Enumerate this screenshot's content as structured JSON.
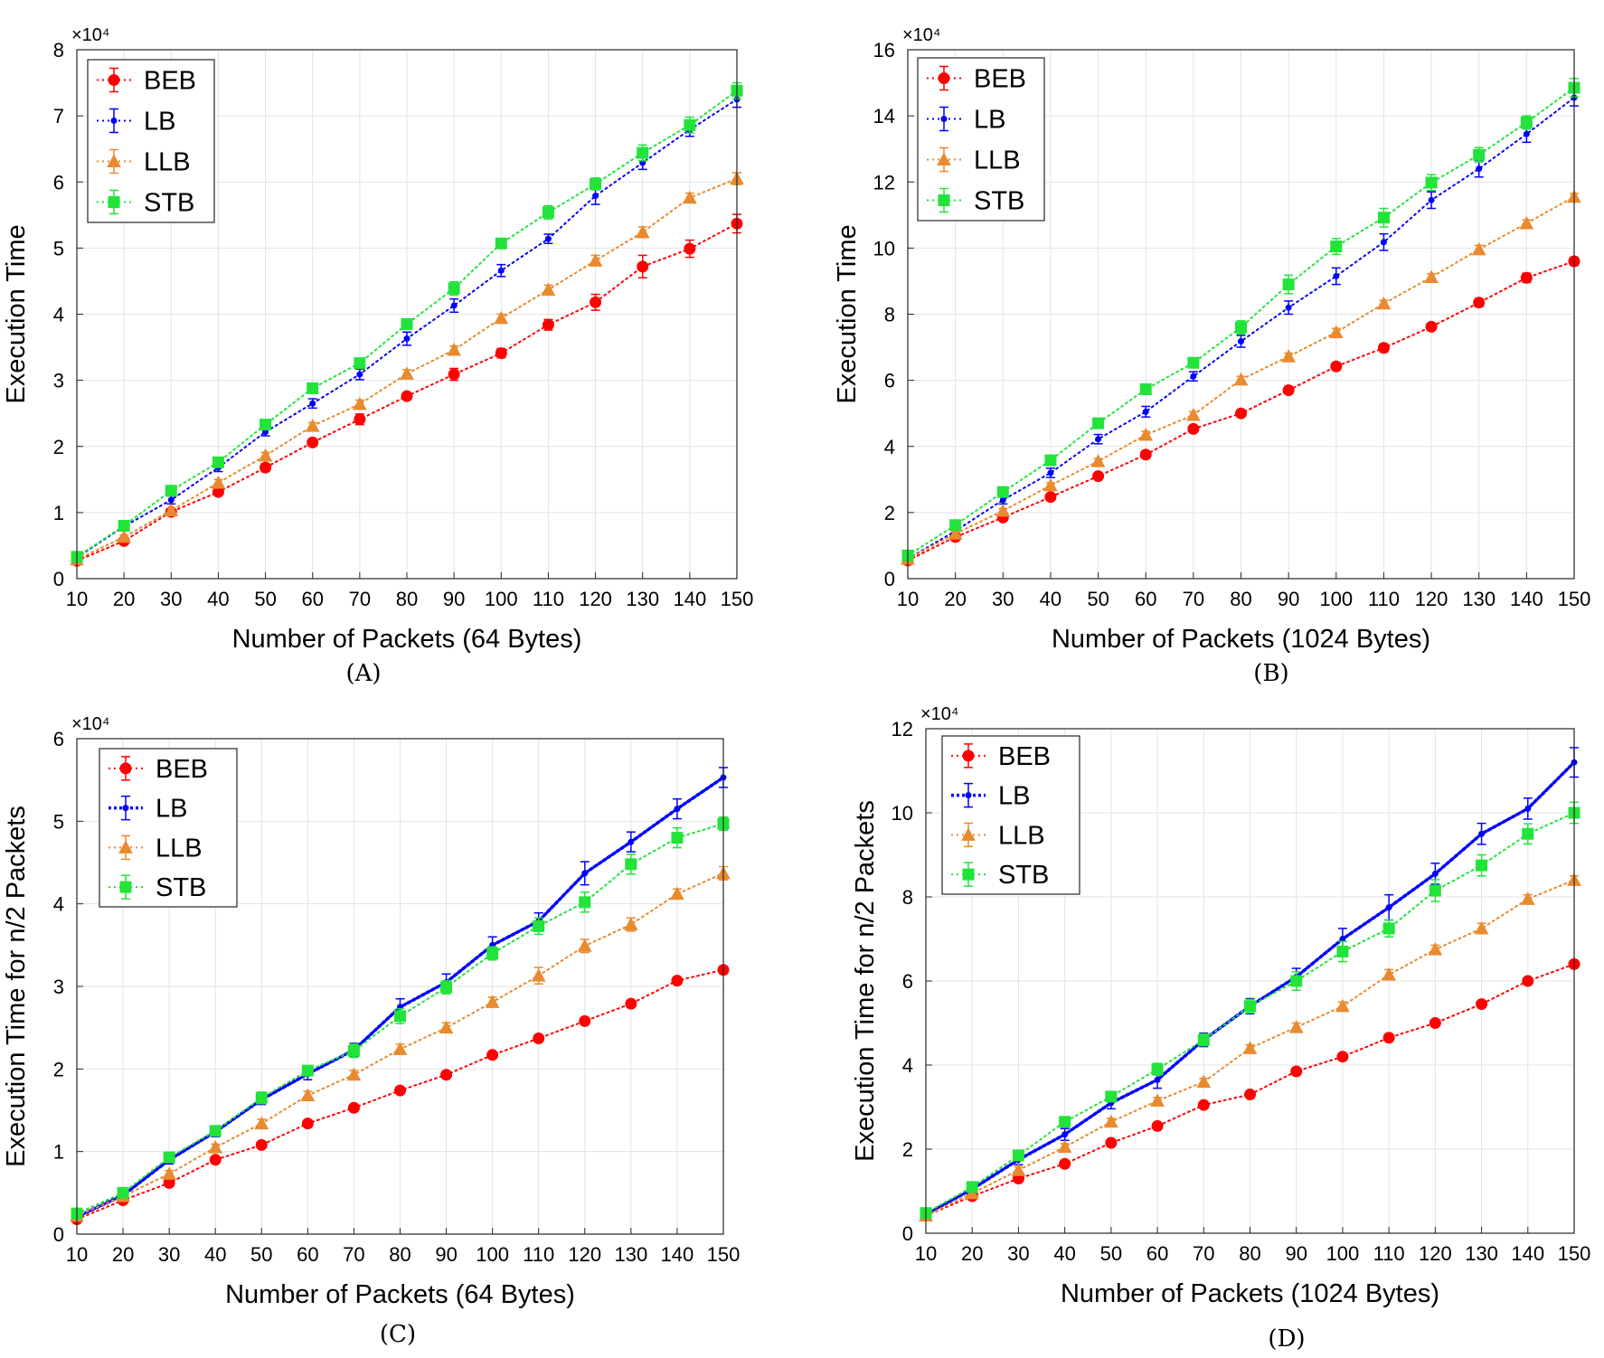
{
  "chart_data": [
    {
      "id": "A",
      "type": "line",
      "caption": "(A)",
      "xlabel": "Number of Packets (64 Bytes)",
      "ylabel": "Execution Time",
      "exponent_label": "×10⁴",
      "x": [
        10,
        20,
        30,
        40,
        50,
        60,
        70,
        80,
        90,
        100,
        110,
        120,
        130,
        140,
        150
      ],
      "xlim": [
        10,
        150
      ],
      "ylim": [
        0,
        8
      ],
      "yticks": [
        0,
        1,
        2,
        3,
        4,
        5,
        6,
        7,
        8
      ],
      "grid": true,
      "legend_position": "top-left",
      "series": [
        {
          "name": "BEB",
          "color": "#ff0000",
          "marker": "circle",
          "bold": false,
          "values": [
            0.27,
            0.57,
            1.01,
            1.31,
            1.68,
            2.06,
            2.41,
            2.76,
            3.09,
            3.41,
            3.84,
            4.18,
            4.72,
            4.99,
            5.37
          ],
          "errors": [
            0.03,
            0.04,
            0.04,
            0.04,
            0.06,
            0.05,
            0.08,
            0.05,
            0.09,
            0.07,
            0.08,
            0.12,
            0.17,
            0.13,
            0.14
          ]
        },
        {
          "name": "LB",
          "color": "#0000ff",
          "marker": "dot",
          "bold": false,
          "values": [
            0.32,
            0.79,
            1.19,
            1.68,
            2.22,
            2.65,
            3.09,
            3.63,
            4.13,
            4.66,
            5.14,
            5.79,
            6.29,
            6.79,
            7.25
          ],
          "errors": [
            0.03,
            0.04,
            0.06,
            0.06,
            0.06,
            0.07,
            0.08,
            0.1,
            0.1,
            0.09,
            0.07,
            0.13,
            0.1,
            0.1,
            0.12
          ]
        },
        {
          "name": "LLB",
          "color": "#e98a2e",
          "marker": "triangle",
          "bold": false,
          "values": [
            0.29,
            0.63,
            1.03,
            1.45,
            1.86,
            2.31,
            2.64,
            3.1,
            3.46,
            3.94,
            4.37,
            4.81,
            5.24,
            5.76,
            6.05
          ],
          "errors": [
            0.02,
            0.03,
            0.04,
            0.05,
            0.05,
            0.05,
            0.06,
            0.06,
            0.06,
            0.06,
            0.07,
            0.08,
            0.08,
            0.07,
            0.09
          ]
        },
        {
          "name": "STB",
          "color": "#22e33a",
          "marker": "square",
          "bold": false,
          "values": [
            0.33,
            0.8,
            1.33,
            1.76,
            2.33,
            2.88,
            3.26,
            3.85,
            4.39,
            5.07,
            5.54,
            5.97,
            6.44,
            6.86,
            7.38
          ],
          "errors": [
            0.03,
            0.04,
            0.05,
            0.05,
            0.06,
            0.05,
            0.05,
            0.06,
            0.1,
            0.06,
            0.1,
            0.09,
            0.12,
            0.12,
            0.12
          ]
        }
      ]
    },
    {
      "id": "B",
      "type": "line",
      "caption": "(B)",
      "xlabel": "Number of Packets (1024 Bytes)",
      "ylabel": "Execution Time",
      "exponent_label": "×10⁴",
      "x": [
        10,
        20,
        30,
        40,
        50,
        60,
        70,
        80,
        90,
        100,
        110,
        120,
        130,
        140,
        150
      ],
      "xlim": [
        10,
        150
      ],
      "ylim": [
        0,
        16
      ],
      "yticks": [
        0,
        2,
        4,
        6,
        8,
        10,
        12,
        14,
        16
      ],
      "grid": true,
      "legend_position": "top-left",
      "series": [
        {
          "name": "BEB",
          "color": "#ff0000",
          "marker": "circle",
          "bold": false,
          "values": [
            0.55,
            1.26,
            1.85,
            2.47,
            3.1,
            3.75,
            4.53,
            5.0,
            5.7,
            6.42,
            6.98,
            7.62,
            8.35,
            9.1,
            9.6
          ],
          "errors": [
            0.05,
            0.06,
            0.06,
            0.07,
            0.07,
            0.08,
            0.08,
            0.09,
            0.1,
            0.1,
            0.12,
            0.1,
            0.12,
            0.14,
            0.12
          ]
        },
        {
          "name": "LB",
          "color": "#0000ff",
          "marker": "dot",
          "bold": false,
          "values": [
            0.6,
            1.44,
            2.38,
            3.2,
            4.22,
            5.05,
            6.12,
            7.18,
            8.2,
            9.15,
            10.18,
            11.45,
            12.4,
            13.45,
            14.55
          ],
          "errors": [
            0.06,
            0.08,
            0.12,
            0.14,
            0.14,
            0.16,
            0.14,
            0.18,
            0.2,
            0.25,
            0.25,
            0.25,
            0.25,
            0.25,
            0.25
          ]
        },
        {
          "name": "LLB",
          "color": "#e98a2e",
          "marker": "triangle",
          "bold": false,
          "values": [
            0.6,
            1.36,
            2.05,
            2.82,
            3.55,
            4.35,
            4.95,
            6.02,
            6.72,
            7.45,
            8.32,
            9.12,
            9.96,
            10.75,
            11.55
          ],
          "errors": [
            0.05,
            0.06,
            0.07,
            0.08,
            0.08,
            0.1,
            0.1,
            0.1,
            0.1,
            0.12,
            0.1,
            0.1,
            0.12,
            0.1,
            0.1
          ]
        },
        {
          "name": "STB",
          "color": "#22e33a",
          "marker": "square",
          "bold": false,
          "values": [
            0.7,
            1.62,
            2.62,
            3.58,
            4.7,
            5.73,
            6.53,
            7.6,
            8.9,
            10.05,
            10.92,
            11.98,
            12.82,
            13.8,
            14.85
          ],
          "errors": [
            0.08,
            0.1,
            0.12,
            0.12,
            0.12,
            0.14,
            0.14,
            0.2,
            0.28,
            0.24,
            0.28,
            0.24,
            0.22,
            0.2,
            0.28
          ]
        }
      ]
    },
    {
      "id": "C",
      "type": "line",
      "caption": "(C)",
      "xlabel": "Number of Packets (64 Bytes)",
      "ylabel": "Execution Time for n/2 Packets",
      "exponent_label": "×10⁴",
      "x": [
        10,
        20,
        30,
        40,
        50,
        60,
        70,
        80,
        90,
        100,
        110,
        120,
        130,
        140,
        150
      ],
      "xlim": [
        10,
        150
      ],
      "ylim": [
        0,
        6
      ],
      "yticks": [
        0,
        1,
        2,
        3,
        4,
        5,
        6
      ],
      "grid": true,
      "legend_position": "top-left",
      "series": [
        {
          "name": "BEB",
          "color": "#ff0000",
          "marker": "circle",
          "bold": false,
          "values": [
            0.18,
            0.41,
            0.62,
            0.9,
            1.08,
            1.34,
            1.53,
            1.74,
            1.93,
            2.17,
            2.37,
            2.58,
            2.79,
            3.07,
            3.2
          ],
          "errors": [
            0.02,
            0.02,
            0.03,
            0.03,
            0.03,
            0.03,
            0.03,
            0.03,
            0.03,
            0.03,
            0.04,
            0.04,
            0.04,
            0.04,
            0.04
          ]
        },
        {
          "name": "LB",
          "color": "#0000ff",
          "marker": "dot",
          "bold": true,
          "values": [
            0.21,
            0.47,
            0.9,
            1.24,
            1.63,
            1.94,
            2.23,
            2.75,
            3.05,
            3.5,
            3.79,
            4.37,
            4.75,
            5.15,
            5.53
          ],
          "errors": [
            0.03,
            0.04,
            0.05,
            0.06,
            0.06,
            0.07,
            0.08,
            0.1,
            0.1,
            0.1,
            0.1,
            0.14,
            0.12,
            0.12,
            0.12
          ]
        },
        {
          "name": "LLB",
          "color": "#e98a2e",
          "marker": "triangle",
          "bold": false,
          "values": [
            0.22,
            0.46,
            0.73,
            1.05,
            1.34,
            1.68,
            1.93,
            2.24,
            2.5,
            2.81,
            3.13,
            3.49,
            3.75,
            4.12,
            4.37
          ],
          "errors": [
            0.03,
            0.03,
            0.04,
            0.04,
            0.05,
            0.05,
            0.05,
            0.06,
            0.06,
            0.06,
            0.1,
            0.08,
            0.08,
            0.06,
            0.08
          ]
        },
        {
          "name": "STB",
          "color": "#22e33a",
          "marker": "square",
          "bold": false,
          "values": [
            0.25,
            0.5,
            0.93,
            1.25,
            1.65,
            1.98,
            2.22,
            2.64,
            2.99,
            3.4,
            3.73,
            4.02,
            4.48,
            4.8,
            4.97
          ],
          "errors": [
            0.03,
            0.04,
            0.05,
            0.06,
            0.07,
            0.06,
            0.08,
            0.09,
            0.08,
            0.08,
            0.1,
            0.12,
            0.12,
            0.12,
            0.08
          ]
        }
      ]
    },
    {
      "id": "D",
      "type": "line",
      "caption": "(D)",
      "xlabel": "Number of Packets (1024 Bytes)",
      "ylabel": "Execution Time for n/2 Packets",
      "exponent_label": "×10⁴",
      "x": [
        10,
        20,
        30,
        40,
        50,
        60,
        70,
        80,
        90,
        100,
        110,
        120,
        130,
        140,
        150
      ],
      "xlim": [
        10,
        150
      ],
      "ylim": [
        0,
        12
      ],
      "yticks": [
        0,
        2,
        4,
        6,
        8,
        10,
        12
      ],
      "grid": true,
      "legend_position": "top-left",
      "series": [
        {
          "name": "BEB",
          "color": "#ff0000",
          "marker": "circle",
          "bold": false,
          "values": [
            0.42,
            0.88,
            1.3,
            1.65,
            2.15,
            2.55,
            3.05,
            3.3,
            3.85,
            4.2,
            4.65,
            5.0,
            5.45,
            6.0,
            6.4
          ],
          "errors": [
            0.04,
            0.05,
            0.06,
            0.06,
            0.06,
            0.06,
            0.06,
            0.06,
            0.06,
            0.06,
            0.06,
            0.06,
            0.06,
            0.06,
            0.06
          ]
        },
        {
          "name": "LB",
          "color": "#0000ff",
          "marker": "dot",
          "bold": true,
          "values": [
            0.45,
            1.05,
            1.75,
            2.35,
            3.1,
            3.65,
            4.6,
            5.4,
            6.1,
            7.0,
            7.75,
            8.55,
            9.5,
            10.1,
            11.2
          ],
          "errors": [
            0.06,
            0.1,
            0.12,
            0.14,
            0.14,
            0.2,
            0.16,
            0.18,
            0.2,
            0.25,
            0.3,
            0.25,
            0.25,
            0.25,
            0.35
          ]
        },
        {
          "name": "LLB",
          "color": "#e98a2e",
          "marker": "triangle",
          "bold": false,
          "values": [
            0.42,
            0.95,
            1.5,
            2.05,
            2.65,
            3.15,
            3.6,
            4.4,
            4.9,
            5.4,
            6.15,
            6.75,
            7.25,
            7.95,
            8.4
          ],
          "errors": [
            0.04,
            0.06,
            0.08,
            0.08,
            0.08,
            0.08,
            0.08,
            0.08,
            0.1,
            0.1,
            0.12,
            0.1,
            0.12,
            0.1,
            0.1
          ]
        },
        {
          "name": "STB",
          "color": "#22e33a",
          "marker": "square",
          "bold": false,
          "values": [
            0.48,
            1.1,
            1.85,
            2.65,
            3.25,
            3.9,
            4.6,
            5.4,
            6.0,
            6.7,
            7.25,
            8.15,
            8.75,
            9.5,
            10.0
          ],
          "errors": [
            0.06,
            0.1,
            0.12,
            0.12,
            0.12,
            0.14,
            0.14,
            0.16,
            0.22,
            0.24,
            0.2,
            0.26,
            0.25,
            0.24,
            0.25
          ]
        }
      ]
    }
  ]
}
